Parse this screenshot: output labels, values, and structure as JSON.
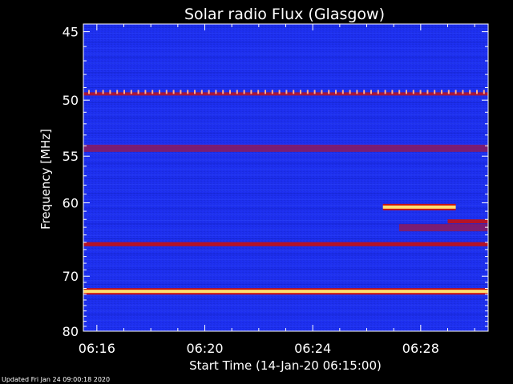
{
  "chart_data": {
    "type": "heatmap",
    "title": "Solar radio Flux (Glasgow)",
    "xlabel": "Start Time (14-Jan-20 06:15:00)",
    "ylabel": "Frequency [MHz]",
    "x_unit": "time",
    "x_ticks": [
      "06:16",
      "06:20",
      "06:24",
      "06:28"
    ],
    "x_tick_minutes": [
      16,
      20,
      24,
      28
    ],
    "x_range_minutes": [
      15.5,
      30.5
    ],
    "y_ticks": [
      45,
      50,
      55,
      60,
      70,
      80
    ],
    "y_range": [
      44.5,
      80.0
    ],
    "y_scale": "reciprocal",
    "grid": false,
    "colors": {
      "background": "#1a2ae8",
      "band_weak": "#8b1a5e",
      "band_mid": "#c81010",
      "band_strong": "#ffe070"
    },
    "bands": [
      {
        "freq": 49.5,
        "intensity": "dotted",
        "x_start": 15.5,
        "x_end": 30.5
      },
      {
        "freq": 54.2,
        "intensity": "weak",
        "x_start": 15.5,
        "x_end": 30.5
      },
      {
        "freq": 65.2,
        "intensity": "mid",
        "x_start": 15.5,
        "x_end": 30.5
      },
      {
        "freq": 72.5,
        "intensity": "strong",
        "x_start": 15.5,
        "x_end": 30.5
      },
      {
        "freq": 60.5,
        "intensity": "strong",
        "x_start": 26.6,
        "x_end": 29.3
      },
      {
        "freq": 62.2,
        "intensity": "mid",
        "x_start": 29.0,
        "x_end": 30.5
      },
      {
        "freq": 63.0,
        "intensity": "weak",
        "x_start": 27.2,
        "x_end": 30.5
      }
    ]
  },
  "footer": "Updated Fri Jan 24 09:00:18 2020"
}
